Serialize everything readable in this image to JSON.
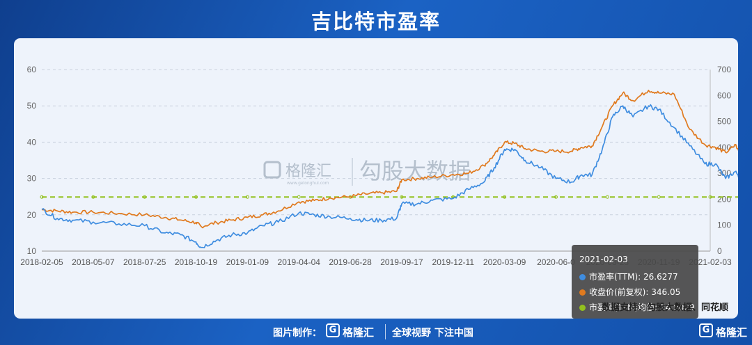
{
  "title": "吉比特市盈率",
  "source_note": "数据支持：勾股大数据、同花顺",
  "footer": {
    "made_by": "图片制作：",
    "logo_text": "格隆汇",
    "slogan": "全球视野 下注中国",
    "corner_logo_text": "格隆汇"
  },
  "watermark": {
    "brand": "格隆汇",
    "brand_sub": "www.gelonghui.com",
    "product": "勾股大数据"
  },
  "colors": {
    "pe": "#3f8de0",
    "price": "#e07a1f",
    "pe_avg": "#92c11e"
  },
  "tooltip": {
    "date": "2021-02-03",
    "rows": [
      {
        "label": "市盈率(TTM): 26.6277",
        "color": "#3f8de0"
      },
      {
        "label": "收盘价(前复权): 346.05",
        "color": "#e07a1f"
      },
      {
        "label": "市盈率(TTM)均值: 24.9029",
        "color": "#92c11e"
      }
    ]
  },
  "chart_data": {
    "type": "line",
    "x_ticks": [
      "2018-02-05",
      "2018-05-07",
      "2018-07-25",
      "2018-10-19",
      "2019-01-09",
      "2019-04-04",
      "2019-06-28",
      "2019-09-17",
      "2019-12-11",
      "2020-03-09",
      "2020-06-0",
      "2020-08-28",
      "2020-11-19",
      "2021-02-03"
    ],
    "y_left": {
      "min": 10,
      "max": 60,
      "ticks": [
        10,
        20,
        30,
        40,
        50,
        60
      ]
    },
    "y_right": {
      "min": 0,
      "max": 700,
      "ticks": [
        0,
        100,
        200,
        300,
        400,
        500,
        600,
        700
      ]
    },
    "grid": "horizontal dashed",
    "legend": "none",
    "series": [
      {
        "name": "市盈率(TTM)",
        "axis": "left",
        "points": [
          [
            0,
            21.5
          ],
          [
            0.3,
            19
          ],
          [
            0.6,
            18.5
          ],
          [
            1,
            18
          ],
          [
            1.5,
            17.5
          ],
          [
            2,
            17
          ],
          [
            2.4,
            15
          ],
          [
            2.7,
            14.5
          ],
          [
            3,
            12.5
          ],
          [
            3.1,
            11
          ],
          [
            3.4,
            13
          ],
          [
            3.7,
            14.5
          ],
          [
            4,
            15
          ],
          [
            4.3,
            17
          ],
          [
            4.6,
            18
          ],
          [
            5,
            20.5
          ],
          [
            5.3,
            20
          ],
          [
            5.6,
            19.5
          ],
          [
            6,
            19
          ],
          [
            6.3,
            18.5
          ],
          [
            6.6,
            18.5
          ],
          [
            6.9,
            19
          ],
          [
            7,
            23
          ],
          [
            7.3,
            23
          ],
          [
            7.6,
            24
          ],
          [
            8,
            24.5
          ],
          [
            8.3,
            27
          ],
          [
            8.6,
            29
          ],
          [
            8.8,
            33
          ],
          [
            9,
            38
          ],
          [
            9.2,
            38
          ],
          [
            9.4,
            35
          ],
          [
            9.7,
            33
          ],
          [
            10,
            30
          ],
          [
            10.3,
            29
          ],
          [
            10.5,
            31
          ],
          [
            10.7,
            31
          ],
          [
            10.9,
            38
          ],
          [
            11.1,
            47
          ],
          [
            11.3,
            50
          ],
          [
            11.5,
            47
          ],
          [
            11.8,
            50
          ],
          [
            12,
            49
          ],
          [
            12.3,
            44
          ],
          [
            12.6,
            39
          ],
          [
            12.9,
            34
          ],
          [
            13.1,
            34
          ],
          [
            13.3,
            30
          ],
          [
            13.5,
            32
          ],
          [
            13.7,
            24.5
          ],
          [
            13.85,
            25
          ],
          [
            14,
            26.6277
          ]
        ]
      },
      {
        "name": "收盘价(前复权)",
        "axis": "right",
        "points": [
          [
            0,
            160
          ],
          [
            0.3,
            155
          ],
          [
            0.6,
            150
          ],
          [
            1,
            150
          ],
          [
            1.5,
            145
          ],
          [
            2,
            140
          ],
          [
            2.4,
            130
          ],
          [
            2.7,
            120
          ],
          [
            3,
            110
          ],
          [
            3.1,
            95
          ],
          [
            3.4,
            110
          ],
          [
            3.7,
            120
          ],
          [
            4,
            130
          ],
          [
            4.3,
            140
          ],
          [
            4.6,
            155
          ],
          [
            5,
            190
          ],
          [
            5.3,
            195
          ],
          [
            5.6,
            205
          ],
          [
            6,
            210
          ],
          [
            6.3,
            220
          ],
          [
            6.6,
            225
          ],
          [
            6.9,
            230
          ],
          [
            7,
            275
          ],
          [
            7.3,
            280
          ],
          [
            7.6,
            285
          ],
          [
            8,
            295
          ],
          [
            8.3,
            300
          ],
          [
            8.6,
            330
          ],
          [
            8.8,
            370
          ],
          [
            9,
            420
          ],
          [
            9.2,
            415
          ],
          [
            9.4,
            395
          ],
          [
            9.7,
            385
          ],
          [
            10,
            385
          ],
          [
            10.3,
            385
          ],
          [
            10.5,
            400
          ],
          [
            10.7,
            405
          ],
          [
            10.9,
            480
          ],
          [
            11.1,
            560
          ],
          [
            11.3,
            610
          ],
          [
            11.5,
            580
          ],
          [
            11.8,
            620
          ],
          [
            12,
            610
          ],
          [
            12.3,
            605
          ],
          [
            12.6,
            470
          ],
          [
            12.9,
            410
          ],
          [
            13.1,
            400
          ],
          [
            13.3,
            380
          ],
          [
            13.5,
            410
          ],
          [
            13.7,
            310
          ],
          [
            13.85,
            315
          ],
          [
            14,
            346.05
          ]
        ]
      },
      {
        "name": "市盈率(TTM)均值",
        "axis": "left",
        "points": [
          [
            0,
            24.9029
          ],
          [
            14,
            24.9029
          ]
        ]
      }
    ]
  }
}
